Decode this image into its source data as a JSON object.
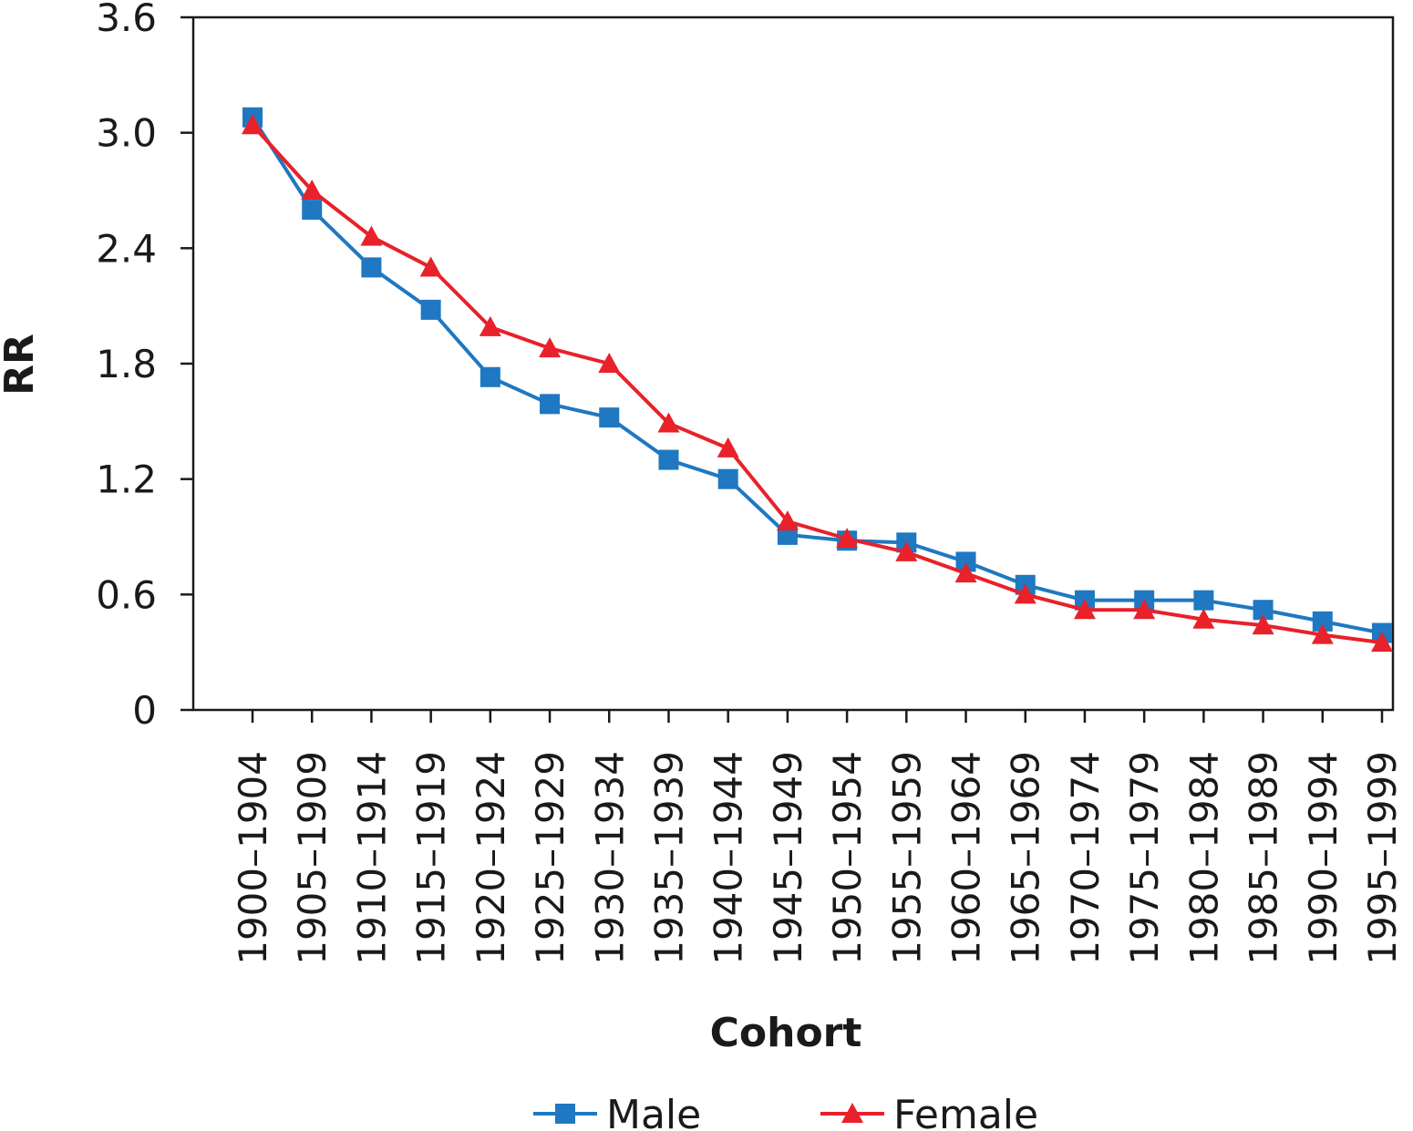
{
  "chart_data": {
    "type": "line",
    "xlabel": "Cohort",
    "ylabel": "RR",
    "ylim": [
      0,
      3.6
    ],
    "yticks": [
      "0",
      "0.6",
      "1.2",
      "1.8",
      "2.4",
      "3.0",
      "3.6"
    ],
    "grid": false,
    "legend_position": "bottom",
    "categories": [
      "1900–1904",
      "1905–1909",
      "1910–1914",
      "1915–1919",
      "1920–1924",
      "1925–1929",
      "1930–1934",
      "1935–1939",
      "1940–1944",
      "1945–1949",
      "1950–1954",
      "1955–1959",
      "1960–1964",
      "1965–1969",
      "1970–1974",
      "1975–1979",
      "1980–1984",
      "1985–1989",
      "1990–1994",
      "1995–1999"
    ],
    "series": [
      {
        "name": "Male",
        "color": "#1f78c1",
        "marker": "square",
        "values": [
          3.08,
          2.6,
          2.3,
          2.08,
          1.73,
          1.59,
          1.52,
          1.3,
          1.2,
          0.91,
          0.88,
          0.87,
          0.77,
          0.65,
          0.57,
          0.57,
          0.57,
          0.52,
          0.46,
          0.4
        ]
      },
      {
        "name": "Female",
        "color": "#e8212a",
        "marker": "triangle",
        "values": [
          3.04,
          2.7,
          2.46,
          2.3,
          1.99,
          1.88,
          1.8,
          1.49,
          1.36,
          0.98,
          0.89,
          0.82,
          0.71,
          0.6,
          0.52,
          0.52,
          0.47,
          0.44,
          0.39,
          0.35
        ]
      }
    ]
  }
}
